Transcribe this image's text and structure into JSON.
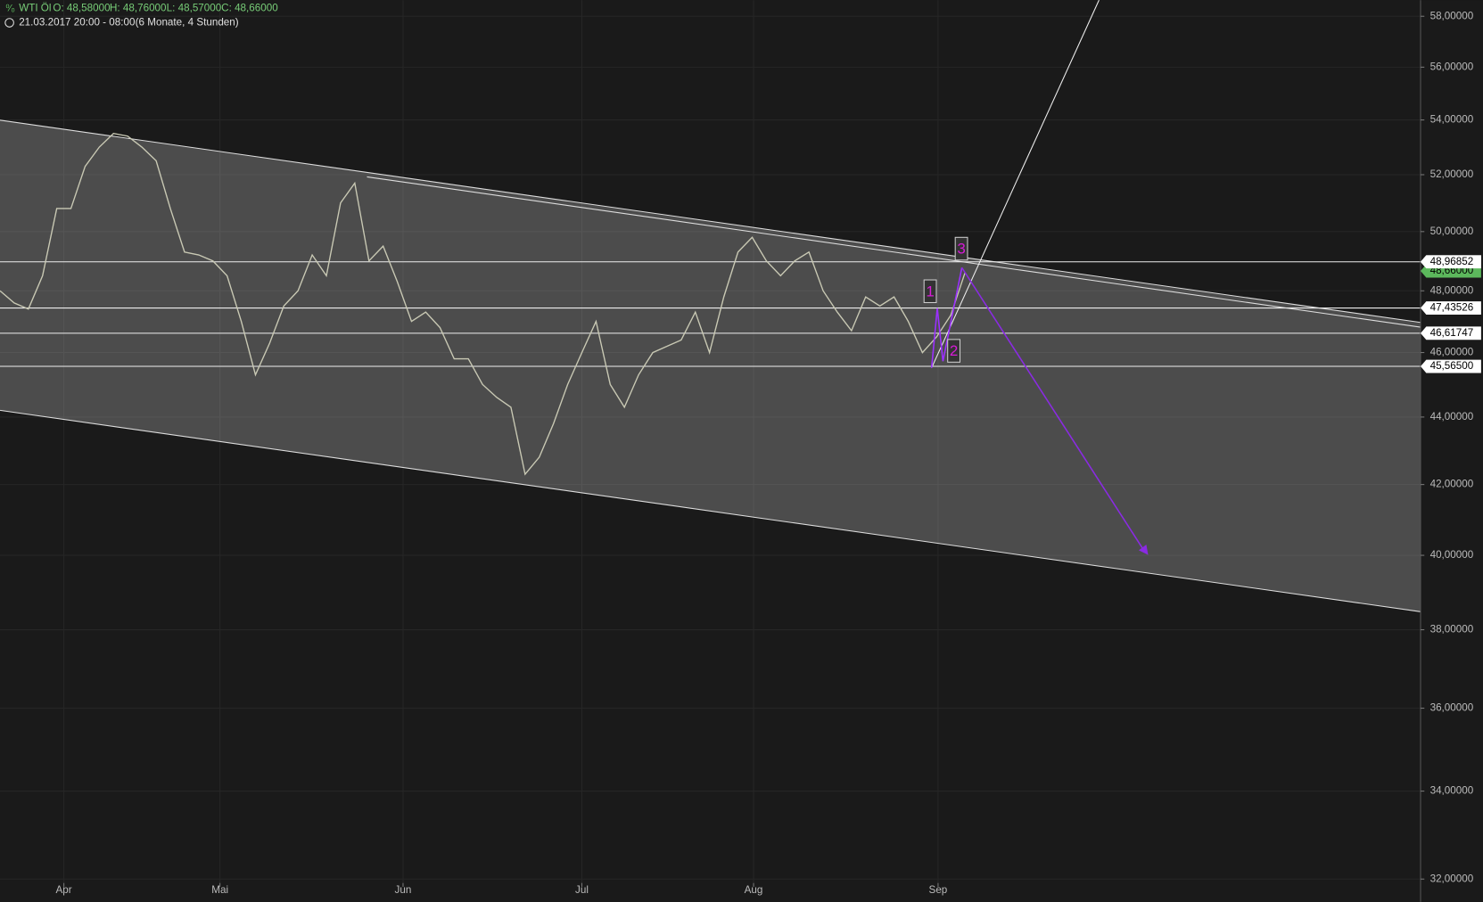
{
  "chart_data": {
    "type": "line",
    "header": {
      "instrument": "WTI Öl",
      "open": "O: 48,58000",
      "high": "H: 48,76000",
      "low": "L: 48,57000",
      "close": "C: 48,66000",
      "period": "21.03.2017 20:00 - 08:00",
      "range": "(6 Monate, 4 Stunden)"
    },
    "log_scale": true,
    "grid": true,
    "color": "#c9c9b4",
    "ylim": [
      31.5,
      58.65
    ],
    "yticks": [
      {
        "value": 58,
        "label": "58,00000"
      },
      {
        "value": 56,
        "label": "56,00000"
      },
      {
        "value": 54,
        "label": "54,00000"
      },
      {
        "value": 52,
        "label": "52,00000"
      },
      {
        "value": 50,
        "label": "50,00000"
      },
      {
        "value": 48,
        "label": "48,00000"
      },
      {
        "value": 46,
        "label": "46,00000"
      },
      {
        "value": 44,
        "label": "44,00000"
      },
      {
        "value": 42,
        "label": "42,00000"
      },
      {
        "value": 40,
        "label": "40,00000"
      },
      {
        "value": 38,
        "label": "38,00000"
      },
      {
        "value": 36,
        "label": "36,00000"
      },
      {
        "value": 34,
        "label": "34,00000"
      },
      {
        "value": 32,
        "label": "32,00000"
      }
    ],
    "xlim": [
      0,
      100.1
    ],
    "xticks": [
      {
        "value": 4.5,
        "label": "Apr"
      },
      {
        "value": 15.5,
        "label": "Mai"
      },
      {
        "value": 28.4,
        "label": "Jun"
      },
      {
        "value": 41,
        "label": "Jul"
      },
      {
        "value": 53.1,
        "label": "Aug"
      },
      {
        "value": 66.1,
        "label": "Sep"
      }
    ],
    "values": [
      48.0,
      47.6,
      47.4,
      48.5,
      50.8,
      50.8,
      52.3,
      53.0,
      53.5,
      53.4,
      53.0,
      52.5,
      50.8,
      49.3,
      49.2,
      49.0,
      48.5,
      47.0,
      45.3,
      46.3,
      47.5,
      48.0,
      49.2,
      48.5,
      51.0,
      51.7,
      49.0,
      49.5,
      48.3,
      47.0,
      47.3,
      46.8,
      45.8,
      45.8,
      45.0,
      44.6,
      44.3,
      42.3,
      42.8,
      43.8,
      45.0,
      46.0,
      47.0,
      45.0,
      44.3,
      45.3,
      46.0,
      46.2,
      46.4,
      47.3,
      46.0,
      47.8,
      49.3,
      49.8,
      49.0,
      48.5,
      49.0,
      49.3,
      48.0,
      47.3,
      46.7,
      47.8,
      47.5,
      47.8,
      47.0,
      46.0,
      46.5,
      47.2,
      48.6
    ],
    "levels": [
      {
        "value": 48.96852,
        "label": "48,96852"
      },
      {
        "value": 47.43526,
        "label": "47,43526"
      },
      {
        "value": 46.61747,
        "label": "46,61747"
      },
      {
        "value": 45.565,
        "label": "45,56500"
      }
    ],
    "last_price": {
      "value": 48.66,
      "label": "48,66000"
    },
    "annotations": [
      "1",
      "2",
      "3"
    ]
  }
}
